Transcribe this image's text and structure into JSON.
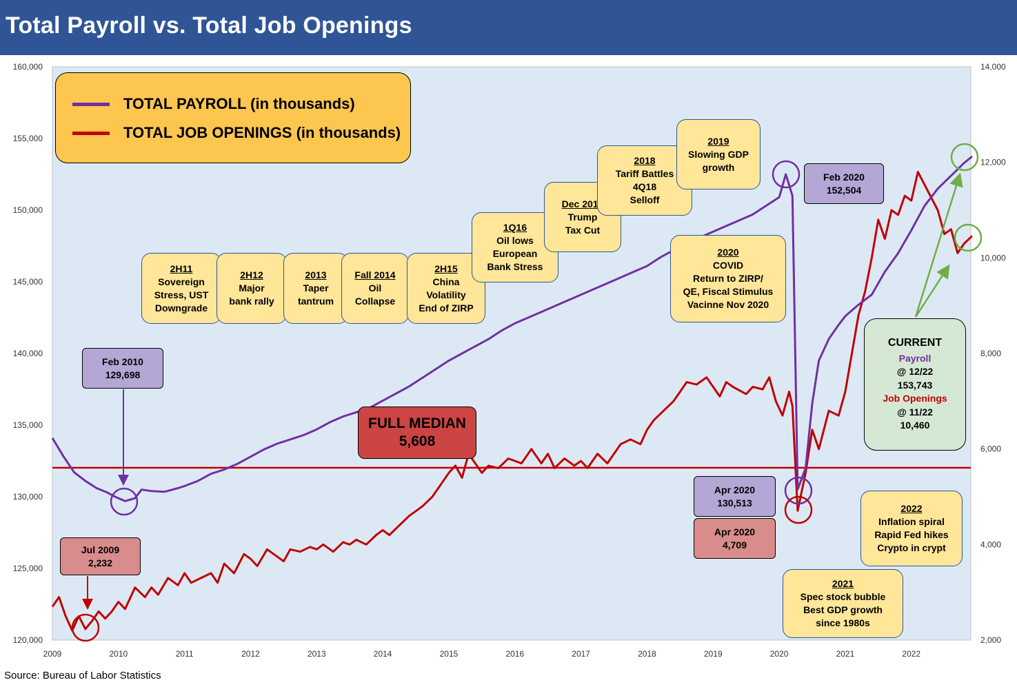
{
  "title": "Total Payroll vs. Total Job Openings",
  "source": "Source: Bureau of Labor Statistics",
  "legend": {
    "payroll": "TOTAL PAYROLL (in thousands)",
    "openings": "TOTAL JOB OPENINGS (in thousands)"
  },
  "colors": {
    "payroll": "#7030a0",
    "openings": "#c00000",
    "median": "#c00000",
    "title_bar": "#2f5597",
    "plot_bg": "#dce9f5",
    "arrow_green": "#70ad47"
  },
  "median_label": {
    "line1": "FULL MEDIAN",
    "line2": "5,608"
  },
  "annotations": {
    "feb2010": {
      "line1": "Feb 2010",
      "line2": "129,698"
    },
    "jul2009": {
      "line1": "Jul 2009",
      "line2": "2,232"
    },
    "feb2020": {
      "line1": "Feb 2020",
      "line2": "152,504"
    },
    "apr2020_payroll": {
      "line1": "Apr 2020",
      "line2": "130,513"
    },
    "apr2020_openings": {
      "line1": "Apr 2020",
      "line2": "4,709"
    },
    "current": {
      "head": "CURRENT",
      "payroll_label": "Payroll",
      "payroll_date": "@ 12/22",
      "payroll_value": "153,743",
      "openings_label": "Job Openings",
      "openings_date": "@ 11/22",
      "openings_value": "10,460"
    }
  },
  "events": [
    {
      "title": "2H11",
      "lines": [
        "Sovereign",
        "Stress, UST",
        "Downgrade"
      ]
    },
    {
      "title": "2H12",
      "lines": [
        "Major",
        "bank rally"
      ]
    },
    {
      "title": "2013",
      "lines": [
        "Taper",
        "tantrum"
      ]
    },
    {
      "title": "Fall 2014",
      "lines": [
        "Oil",
        "Collapse"
      ]
    },
    {
      "title": "2H15",
      "lines": [
        "China",
        "Volatility",
        "End of ZIRP"
      ]
    },
    {
      "title": "1Q16",
      "lines": [
        "Oil lows",
        "European",
        "Bank Stress"
      ]
    },
    {
      "title": "Dec 2017",
      "lines": [
        "Trump",
        "Tax Cut"
      ]
    },
    {
      "title": "2018",
      "lines": [
        "Tariff Battles",
        "4Q18",
        "Selloff"
      ]
    },
    {
      "title": "2019",
      "lines": [
        "Slowing GDP",
        "growth"
      ]
    },
    {
      "title": "2020",
      "lines": [
        "COVID",
        "Return to ZIRP/",
        "QE, Fiscal Stimulus",
        "Vacinne Nov 2020"
      ]
    },
    {
      "title": "2021",
      "lines": [
        "Spec stock bubble",
        "Best GDP growth",
        "since 1980s"
      ]
    },
    {
      "title": "2022",
      "lines": [
        "Inflation spiral",
        "Rapid Fed hikes",
        "Crypto in crypt"
      ]
    }
  ],
  "chart_data": {
    "type": "line",
    "x_ticks": [
      "2009",
      "2010",
      "2011",
      "2012",
      "2013",
      "2014",
      "2015",
      "2016",
      "2017",
      "2018",
      "2019",
      "2020",
      "2021",
      "2022"
    ],
    "xlim": [
      2009,
      2022.9
    ],
    "y_left": {
      "ylim": [
        120000,
        160000
      ],
      "ticks": [
        "120,000",
        "125,000",
        "130,000",
        "135,000",
        "140,000",
        "145,000",
        "150,000",
        "155,000",
        "160,000"
      ]
    },
    "y_right": {
      "ylim": [
        2000,
        14000
      ],
      "ticks": [
        "2,000",
        "4,000",
        "6,000",
        "8,000",
        "10,000",
        "12,000",
        "14,000"
      ]
    },
    "median": 5608,
    "grid": false,
    "legend_position": "top-left",
    "series": [
      {
        "name": "TOTAL PAYROLL (in thousands)",
        "axis": "left",
        "points": [
          [
            2009.0,
            134100
          ],
          [
            2009.17,
            132800
          ],
          [
            2009.33,
            131700
          ],
          [
            2009.5,
            131100
          ],
          [
            2009.67,
            130600
          ],
          [
            2009.83,
            130300
          ],
          [
            2009.95,
            130000
          ],
          [
            2010.1,
            129698
          ],
          [
            2010.25,
            129900
          ],
          [
            2010.35,
            130500
          ],
          [
            2010.5,
            130400
          ],
          [
            2010.7,
            130350
          ],
          [
            2010.9,
            130600
          ],
          [
            2011.0,
            130750
          ],
          [
            2011.2,
            131100
          ],
          [
            2011.4,
            131600
          ],
          [
            2011.6,
            131900
          ],
          [
            2011.8,
            132300
          ],
          [
            2012.0,
            132800
          ],
          [
            2012.2,
            133300
          ],
          [
            2012.4,
            133700
          ],
          [
            2012.6,
            134000
          ],
          [
            2012.8,
            134300
          ],
          [
            2013.0,
            134700
          ],
          [
            2013.2,
            135200
          ],
          [
            2013.4,
            135600
          ],
          [
            2013.6,
            135900
          ],
          [
            2013.8,
            136200
          ],
          [
            2014.0,
            136700
          ],
          [
            2014.2,
            137200
          ],
          [
            2014.4,
            137700
          ],
          [
            2014.6,
            138300
          ],
          [
            2014.8,
            138900
          ],
          [
            2015.0,
            139500
          ],
          [
            2015.2,
            140000
          ],
          [
            2015.4,
            140500
          ],
          [
            2015.6,
            141000
          ],
          [
            2015.8,
            141600
          ],
          [
            2016.0,
            142100
          ],
          [
            2016.2,
            142500
          ],
          [
            2016.4,
            142900
          ],
          [
            2016.6,
            143300
          ],
          [
            2016.8,
            143700
          ],
          [
            2017.0,
            144100
          ],
          [
            2017.2,
            144500
          ],
          [
            2017.4,
            144900
          ],
          [
            2017.6,
            145300
          ],
          [
            2017.8,
            145700
          ],
          [
            2018.0,
            146100
          ],
          [
            2018.2,
            146700
          ],
          [
            2018.4,
            147200
          ],
          [
            2018.6,
            147700
          ],
          [
            2018.8,
            148100
          ],
          [
            2019.0,
            148500
          ],
          [
            2019.2,
            148900
          ],
          [
            2019.4,
            149300
          ],
          [
            2019.6,
            149700
          ],
          [
            2019.8,
            150300
          ],
          [
            2020.0,
            150900
          ],
          [
            2020.1,
            152504
          ],
          [
            2020.2,
            151000
          ],
          [
            2020.28,
            130513
          ],
          [
            2020.4,
            132000
          ],
          [
            2020.5,
            136500
          ],
          [
            2020.6,
            139500
          ],
          [
            2020.75,
            141000
          ],
          [
            2020.9,
            142000
          ],
          [
            2021.0,
            142600
          ],
          [
            2021.2,
            143400
          ],
          [
            2021.4,
            144100
          ],
          [
            2021.6,
            145700
          ],
          [
            2021.8,
            147000
          ],
          [
            2022.0,
            148600
          ],
          [
            2022.2,
            150300
          ],
          [
            2022.4,
            151500
          ],
          [
            2022.6,
            152400
          ],
          [
            2022.8,
            153300
          ],
          [
            2022.92,
            153743
          ]
        ]
      },
      {
        "name": "TOTAL JOB OPENINGS (in thousands)",
        "axis": "right",
        "points": [
          [
            2009.0,
            2700
          ],
          [
            2009.1,
            2900
          ],
          [
            2009.2,
            2500
          ],
          [
            2009.3,
            2200
          ],
          [
            2009.4,
            2500
          ],
          [
            2009.5,
            2232
          ],
          [
            2009.6,
            2400
          ],
          [
            2009.7,
            2600
          ],
          [
            2009.8,
            2450
          ],
          [
            2009.9,
            2600
          ],
          [
            2010.0,
            2800
          ],
          [
            2010.1,
            2650
          ],
          [
            2010.25,
            3100
          ],
          [
            2010.4,
            2900
          ],
          [
            2010.5,
            3100
          ],
          [
            2010.6,
            2950
          ],
          [
            2010.75,
            3300
          ],
          [
            2010.9,
            3150
          ],
          [
            2011.0,
            3400
          ],
          [
            2011.1,
            3200
          ],
          [
            2011.25,
            3300
          ],
          [
            2011.4,
            3400
          ],
          [
            2011.5,
            3200
          ],
          [
            2011.6,
            3600
          ],
          [
            2011.75,
            3400
          ],
          [
            2011.9,
            3800
          ],
          [
            2012.0,
            3700
          ],
          [
            2012.1,
            3550
          ],
          [
            2012.25,
            3900
          ],
          [
            2012.4,
            3750
          ],
          [
            2012.5,
            3650
          ],
          [
            2012.6,
            3900
          ],
          [
            2012.75,
            3850
          ],
          [
            2012.9,
            3950
          ],
          [
            2013.0,
            3900
          ],
          [
            2013.1,
            4000
          ],
          [
            2013.25,
            3850
          ],
          [
            2013.4,
            4050
          ],
          [
            2013.5,
            4000
          ],
          [
            2013.6,
            4100
          ],
          [
            2013.75,
            4000
          ],
          [
            2013.9,
            4200
          ],
          [
            2014.0,
            4300
          ],
          [
            2014.1,
            4200
          ],
          [
            2014.25,
            4400
          ],
          [
            2014.4,
            4600
          ],
          [
            2014.5,
            4700
          ],
          [
            2014.6,
            4800
          ],
          [
            2014.75,
            5000
          ],
          [
            2014.9,
            5300
          ],
          [
            2015.0,
            5500
          ],
          [
            2015.1,
            5650
          ],
          [
            2015.2,
            5400
          ],
          [
            2015.3,
            5900
          ],
          [
            2015.4,
            5700
          ],
          [
            2015.5,
            5500
          ],
          [
            2015.6,
            5650
          ],
          [
            2015.75,
            5600
          ],
          [
            2015.9,
            5800
          ],
          [
            2016.0,
            5750
          ],
          [
            2016.1,
            5700
          ],
          [
            2016.25,
            6000
          ],
          [
            2016.4,
            5700
          ],
          [
            2016.5,
            5900
          ],
          [
            2016.6,
            5600
          ],
          [
            2016.75,
            5800
          ],
          [
            2016.9,
            5650
          ],
          [
            2017.0,
            5750
          ],
          [
            2017.1,
            5600
          ],
          [
            2017.25,
            5900
          ],
          [
            2017.4,
            5700
          ],
          [
            2017.5,
            5900
          ],
          [
            2017.6,
            6100
          ],
          [
            2017.75,
            6200
          ],
          [
            2017.9,
            6100
          ],
          [
            2018.0,
            6400
          ],
          [
            2018.1,
            6600
          ],
          [
            2018.25,
            6800
          ],
          [
            2018.4,
            7000
          ],
          [
            2018.5,
            7200
          ],
          [
            2018.6,
            7400
          ],
          [
            2018.75,
            7350
          ],
          [
            2018.9,
            7500
          ],
          [
            2019.0,
            7300
          ],
          [
            2019.1,
            7100
          ],
          [
            2019.2,
            7400
          ],
          [
            2019.3,
            7300
          ],
          [
            2019.5,
            7150
          ],
          [
            2019.6,
            7300
          ],
          [
            2019.75,
            7250
          ],
          [
            2019.85,
            7500
          ],
          [
            2019.95,
            7000
          ],
          [
            2020.05,
            6700
          ],
          [
            2020.15,
            7200
          ],
          [
            2020.2,
            6900
          ],
          [
            2020.28,
            4709
          ],
          [
            2020.4,
            5500
          ],
          [
            2020.5,
            6400
          ],
          [
            2020.6,
            6000
          ],
          [
            2020.75,
            6800
          ],
          [
            2020.9,
            6700
          ],
          [
            2021.0,
            7200
          ],
          [
            2021.1,
            8000
          ],
          [
            2021.2,
            8800
          ],
          [
            2021.3,
            9300
          ],
          [
            2021.4,
            10000
          ],
          [
            2021.5,
            10800
          ],
          [
            2021.6,
            10400
          ],
          [
            2021.7,
            11000
          ],
          [
            2021.8,
            10900
          ],
          [
            2021.9,
            11300
          ],
          [
            2022.0,
            11200
          ],
          [
            2022.1,
            11800
          ],
          [
            2022.25,
            11400
          ],
          [
            2022.4,
            11000
          ],
          [
            2022.5,
            10500
          ],
          [
            2022.6,
            10600
          ],
          [
            2022.7,
            10100
          ],
          [
            2022.8,
            10300
          ],
          [
            2022.92,
            10460
          ]
        ]
      }
    ]
  }
}
